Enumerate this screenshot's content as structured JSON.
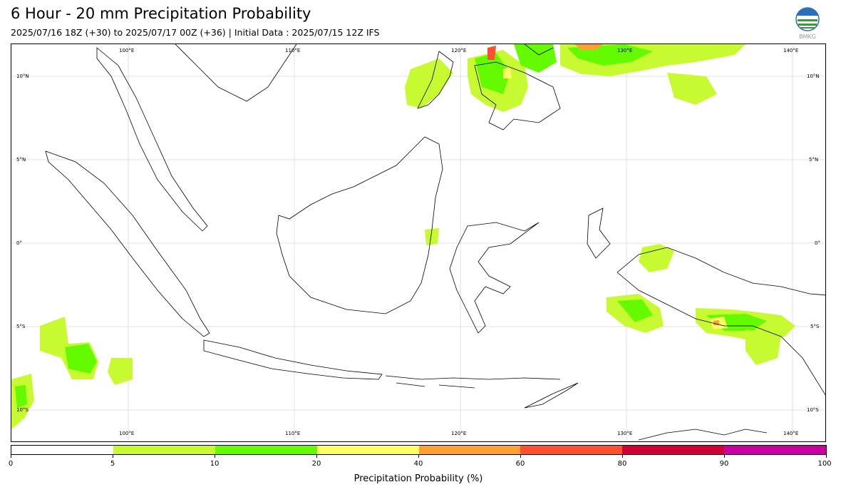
{
  "header": {
    "title": "6 Hour - 20 mm Precipitation Probability",
    "subtitle": "2025/07/16 18Z (+30) to 2025/07/17 00Z (+36) | Initial Data : 2025/07/15 12Z IFS"
  },
  "logo": {
    "icon": "bmkg-logo",
    "text": "BMKG"
  },
  "map": {
    "lon_labels": [
      "100°E",
      "110°E",
      "120°E",
      "130°E",
      "140°E"
    ],
    "lat_labels": [
      "10°N",
      "5°N",
      "0°",
      "5°S",
      "10°S"
    ],
    "gridlines": true
  },
  "colorbar": {
    "label": "Precipitation Probability (%)",
    "ticks": [
      "0",
      "5",
      "10",
      "20",
      "40",
      "60",
      "80",
      "90",
      "100"
    ],
    "colors": [
      "#ffffff",
      "#c8fa32",
      "#64fa00",
      "#ffff64",
      "#ffa032",
      "#ff5032",
      "#d20032",
      "#c800a0"
    ]
  }
}
